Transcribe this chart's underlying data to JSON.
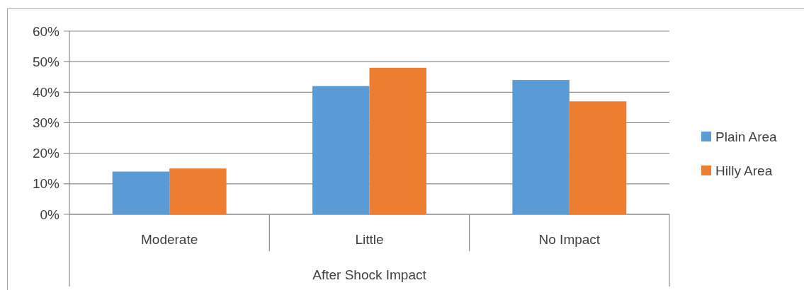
{
  "chart_data": {
    "type": "bar",
    "xlabel": "After Shock Impact",
    "categories": [
      "Moderate",
      "Little",
      "No Impact"
    ],
    "series": [
      {
        "name": "Plain Area",
        "color": "#5b9bd5",
        "values": [
          14,
          42,
          44
        ]
      },
      {
        "name": "Hilly Area",
        "color": "#ed7d31",
        "values": [
          15,
          48,
          37
        ]
      }
    ],
    "ylim": [
      0,
      60
    ],
    "yticks": [
      {
        "value": 0,
        "label": "0%"
      },
      {
        "value": 10,
        "label": "10%"
      },
      {
        "value": 20,
        "label": "20%"
      },
      {
        "value": 30,
        "label": "30%"
      },
      {
        "value": 40,
        "label": "40%"
      },
      {
        "value": 50,
        "label": "50%"
      },
      {
        "value": 60,
        "label": "60%"
      }
    ],
    "grid": "y",
    "legend": "right"
  }
}
